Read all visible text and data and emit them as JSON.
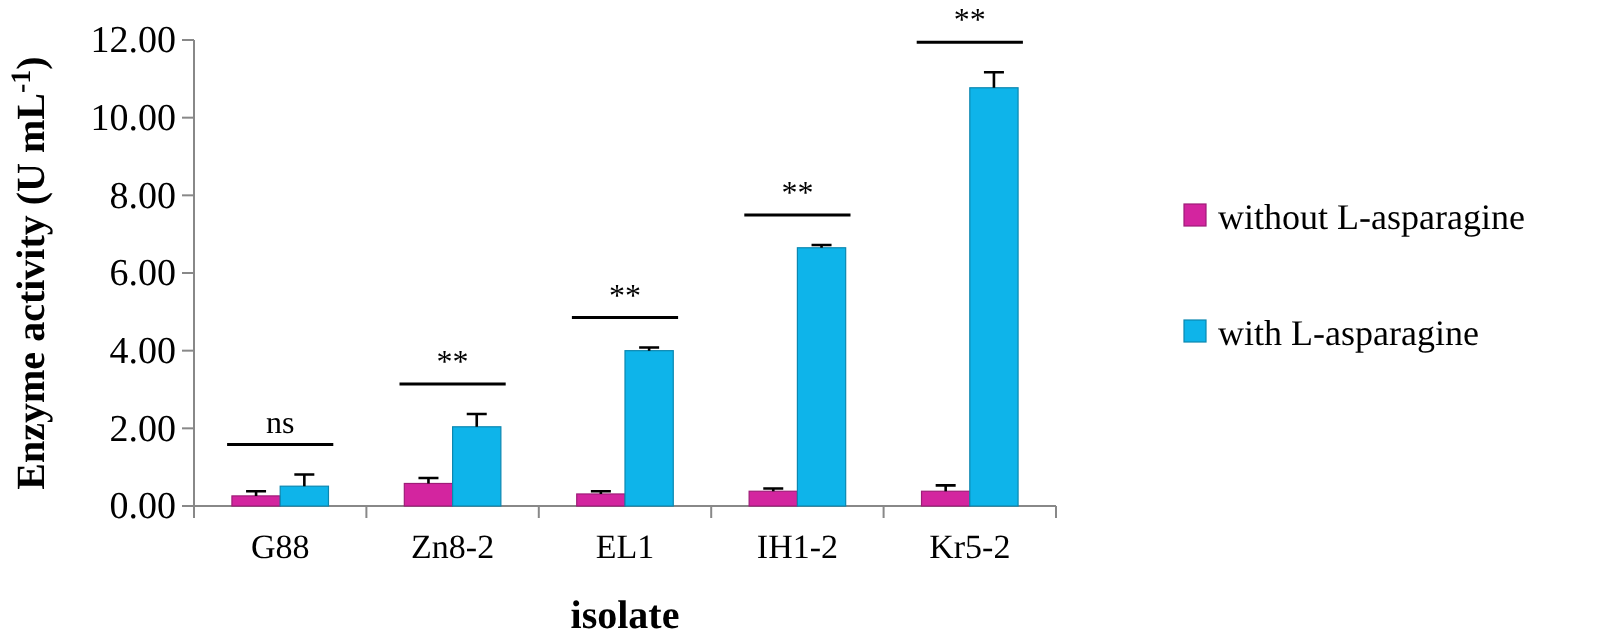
{
  "chart_data": {
    "type": "bar",
    "xlabel": "isolate",
    "ylabel": "Enzyme activity (U mL$^{-1}$)",
    "categories": [
      "G88",
      "Zn8-2",
      "EL1",
      "IH1-2",
      "Kr5-2"
    ],
    "series": [
      {
        "name": "without L-asparagine",
        "color": "#d3259f",
        "values": [
          0.26,
          0.58,
          0.31,
          0.38,
          0.38
        ],
        "errors": [
          0.12,
          0.14,
          0.07,
          0.07,
          0.15
        ]
      },
      {
        "name": "with L-asparagine",
        "color": "#0eb4ea",
        "values": [
          0.51,
          2.04,
          4.0,
          6.65,
          10.77
        ],
        "errors": [
          0.3,
          0.33,
          0.08,
          0.07,
          0.4
        ]
      }
    ],
    "ylim": [
      0,
      12
    ],
    "yticks": [
      {
        "value": 0,
        "label": "0.00"
      },
      {
        "value": 2,
        "label": "2.00"
      },
      {
        "value": 4,
        "label": "4.00"
      },
      {
        "value": 6,
        "label": "6.00"
      },
      {
        "value": 8,
        "label": "8.00"
      },
      {
        "value": 10,
        "label": "10.00"
      },
      {
        "value": 12,
        "label": "12.00"
      }
    ],
    "annotations": [
      "ns",
      "**",
      "**",
      "**",
      "**"
    ],
    "grid": false,
    "legend": "right"
  }
}
